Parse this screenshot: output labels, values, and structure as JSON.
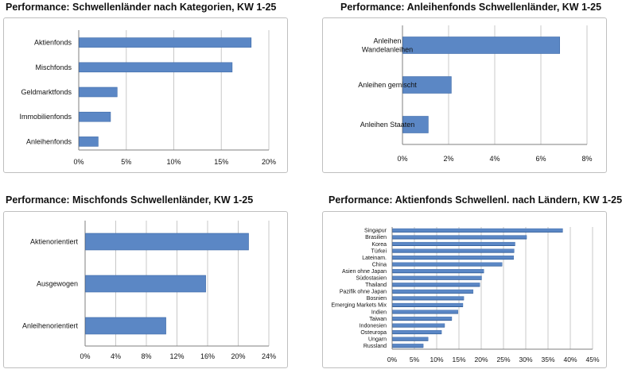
{
  "colors": {
    "bar": "#5b87c5",
    "bar_edge": "#3e6aa8",
    "grid": "#c8c8c8",
    "axis": "#7f7f7f"
  },
  "chart_data": [
    {
      "type": "bar",
      "orientation": "horizontal",
      "title": "Performance: Schwellenländer nach Kategorien, KW 1-25",
      "categories": [
        "Aktienfonds",
        "Mischfonds",
        "Geldmarktfonds",
        "Immobilienfonds",
        "Anleihenfonds"
      ],
      "values": [
        18.1,
        16.1,
        4.0,
        3.3,
        2.0
      ],
      "xlim": [
        0,
        20
      ],
      "ticks": [
        0,
        5,
        10,
        15,
        20
      ],
      "tick_labels": [
        "0%",
        "5%",
        "10%",
        "15%",
        "20%"
      ],
      "unit": "%"
    },
    {
      "type": "bar",
      "orientation": "horizontal",
      "title": "Performance: Anleihenfonds Schwellenländer, KW 1-25",
      "categories": [
        [
          "Anleihen",
          "Wandelanleihen"
        ],
        [
          "Anleihen gemischt"
        ],
        [
          "Anleihen Staaten"
        ]
      ],
      "values": [
        6.8,
        2.1,
        1.1
      ],
      "xlim": [
        0,
        8
      ],
      "ticks": [
        0,
        2,
        4,
        6,
        8
      ],
      "tick_labels": [
        "0%",
        "2%",
        "4%",
        "6%",
        "8%"
      ],
      "unit": "%"
    },
    {
      "type": "bar",
      "orientation": "horizontal",
      "title": "Performance: Mischfonds Schwellenländer, KW 1-25",
      "categories": [
        "Aktienorientiert",
        "Ausgewogen",
        "Anleihenorientiert"
      ],
      "values": [
        21.3,
        15.7,
        10.5
      ],
      "xlim": [
        0,
        24
      ],
      "ticks": [
        0,
        4,
        8,
        12,
        16,
        20,
        24
      ],
      "tick_labels": [
        "0%",
        "4%",
        "8%",
        "12%",
        "16%",
        "20%",
        "24%"
      ],
      "unit": "%"
    },
    {
      "type": "bar",
      "orientation": "horizontal",
      "title": "Performance: Aktienfonds Schwellenl. nach Ländern, KW 1-25",
      "categories": [
        "Singapur",
        "Brasilien",
        "Korea",
        "Türkei",
        "Lateinam.",
        "China",
        "Asien ohne Japan",
        "Südostasien",
        "Thailand",
        "Pazifik ohne Japan",
        "Bosnien",
        "Emerging Markets Mix",
        "Indien",
        "Taiwan",
        "Indonesien",
        "Osteuropa",
        "Ungarn",
        "Russland"
      ],
      "values": [
        38.2,
        30.1,
        27.5,
        27.3,
        27.2,
        24.6,
        20.5,
        20.0,
        19.6,
        18.1,
        16.0,
        15.8,
        14.7,
        13.3,
        11.7,
        11.0,
        8.0,
        6.9
      ],
      "xlim": [
        0,
        45
      ],
      "ticks": [
        0,
        5,
        10,
        15,
        20,
        25,
        30,
        35,
        40,
        45
      ],
      "tick_labels": [
        "0%",
        "5%",
        "10%",
        "15%",
        "20%",
        "25%",
        "30%",
        "35%",
        "40%",
        "45%"
      ],
      "unit": "%"
    }
  ]
}
